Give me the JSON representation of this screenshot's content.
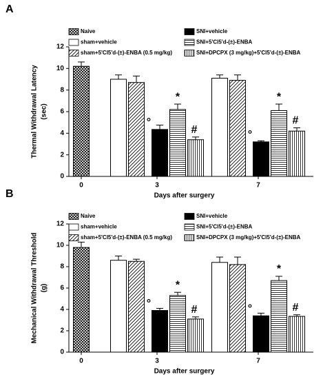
{
  "chart_data": [
    {
      "type": "bar",
      "panel": "A",
      "ylabel": [
        "Thermal Withdrawal Latency",
        "(sec)"
      ],
      "xlabel": "Days after surgery",
      "categories": [
        "0",
        "3",
        "7"
      ],
      "ylim": [
        0,
        12
      ],
      "yticks": [
        0,
        2,
        4,
        6,
        8,
        10,
        12
      ],
      "series": [
        {
          "name": "Naive",
          "color": "#ffffff",
          "pattern": "crosshatch",
          "values": [
            10.2,
            null,
            null
          ],
          "errors": [
            0.4,
            null,
            null
          ],
          "markers": [
            null,
            null,
            null
          ]
        },
        {
          "name": "sham+vehicle",
          "color": "#ffffff",
          "pattern": "none",
          "values": [
            null,
            9.0,
            9.1
          ],
          "errors": [
            null,
            0.4,
            0.3
          ],
          "markers": [
            null,
            null,
            null
          ]
        },
        {
          "name": "sham+5'Cl5'd-(±)-ENBA (0.5 mg/kg)",
          "color": "#ffffff",
          "pattern": "diagonal",
          "values": [
            null,
            8.7,
            8.9
          ],
          "errors": [
            null,
            0.6,
            0.5
          ],
          "markers": [
            null,
            null,
            null
          ]
        },
        {
          "name": "SNI+vehicle",
          "color": "#000000",
          "pattern": "none",
          "values": [
            null,
            4.35,
            3.2
          ],
          "errors": [
            null,
            0.4,
            0.1
          ],
          "markers": [
            null,
            "°",
            "°"
          ]
        },
        {
          "name": "SNI+5'Cl5'd-(±)-ENBA",
          "color": "#ffffff",
          "pattern": "horizontal",
          "values": [
            null,
            6.2,
            6.1
          ],
          "errors": [
            null,
            0.5,
            0.6
          ],
          "markers": [
            null,
            "*",
            "*"
          ]
        },
        {
          "name": "SNI+DPCPX (3 mg/kg)+5'Cl5'd-(±)-ENBA",
          "color": "#ffffff",
          "pattern": "vertical",
          "values": [
            null,
            3.4,
            4.2
          ],
          "errors": [
            null,
            0.25,
            0.3
          ],
          "markers": [
            null,
            "#",
            "#"
          ]
        }
      ]
    },
    {
      "type": "bar",
      "panel": "B",
      "ylabel": [
        "Mechanical Withdrawal Threshold",
        "(g)"
      ],
      "xlabel": "Days after surgery",
      "categories": [
        "0",
        "3",
        "7"
      ],
      "ylim": [
        0,
        12
      ],
      "yticks": [
        0,
        2,
        4,
        6,
        8,
        10,
        12
      ],
      "series": [
        {
          "name": "Naive",
          "color": "#ffffff",
          "pattern": "crosshatch",
          "values": [
            9.8,
            null,
            null
          ],
          "errors": [
            0.5,
            null,
            null
          ],
          "markers": [
            null,
            null,
            null
          ]
        },
        {
          "name": "sham+vehicle",
          "color": "#ffffff",
          "pattern": "none",
          "values": [
            null,
            8.6,
            8.4
          ],
          "errors": [
            null,
            0.4,
            0.5
          ],
          "markers": [
            null,
            null,
            null
          ]
        },
        {
          "name": "sham+5'Cl5'd-(±)-ENBA (0.5 mg/kg)",
          "color": "#ffffff",
          "pattern": "diagonal",
          "values": [
            null,
            8.5,
            8.2
          ],
          "errors": [
            null,
            0.2,
            0.7
          ],
          "markers": [
            null,
            null,
            null
          ]
        },
        {
          "name": "SNI+vehicle",
          "color": "#000000",
          "pattern": "none",
          "values": [
            null,
            3.9,
            3.4
          ],
          "errors": [
            null,
            0.2,
            0.25
          ],
          "markers": [
            null,
            "°",
            "°"
          ]
        },
        {
          "name": "SNI+5'Cl5'd-(±)-ENBA",
          "color": "#ffffff",
          "pattern": "horizontal",
          "values": [
            null,
            5.3,
            6.7
          ],
          "errors": [
            null,
            0.3,
            0.4
          ],
          "markers": [
            null,
            "*",
            "*"
          ]
        },
        {
          "name": "SNI+DPCPX (3 mg/kg)+5'Cl5'd-(±)-ENBA",
          "color": "#ffffff",
          "pattern": "vertical",
          "values": [
            null,
            3.1,
            3.35
          ],
          "errors": [
            null,
            0.2,
            0.15
          ],
          "markers": [
            null,
            "#",
            "#"
          ]
        }
      ]
    }
  ]
}
